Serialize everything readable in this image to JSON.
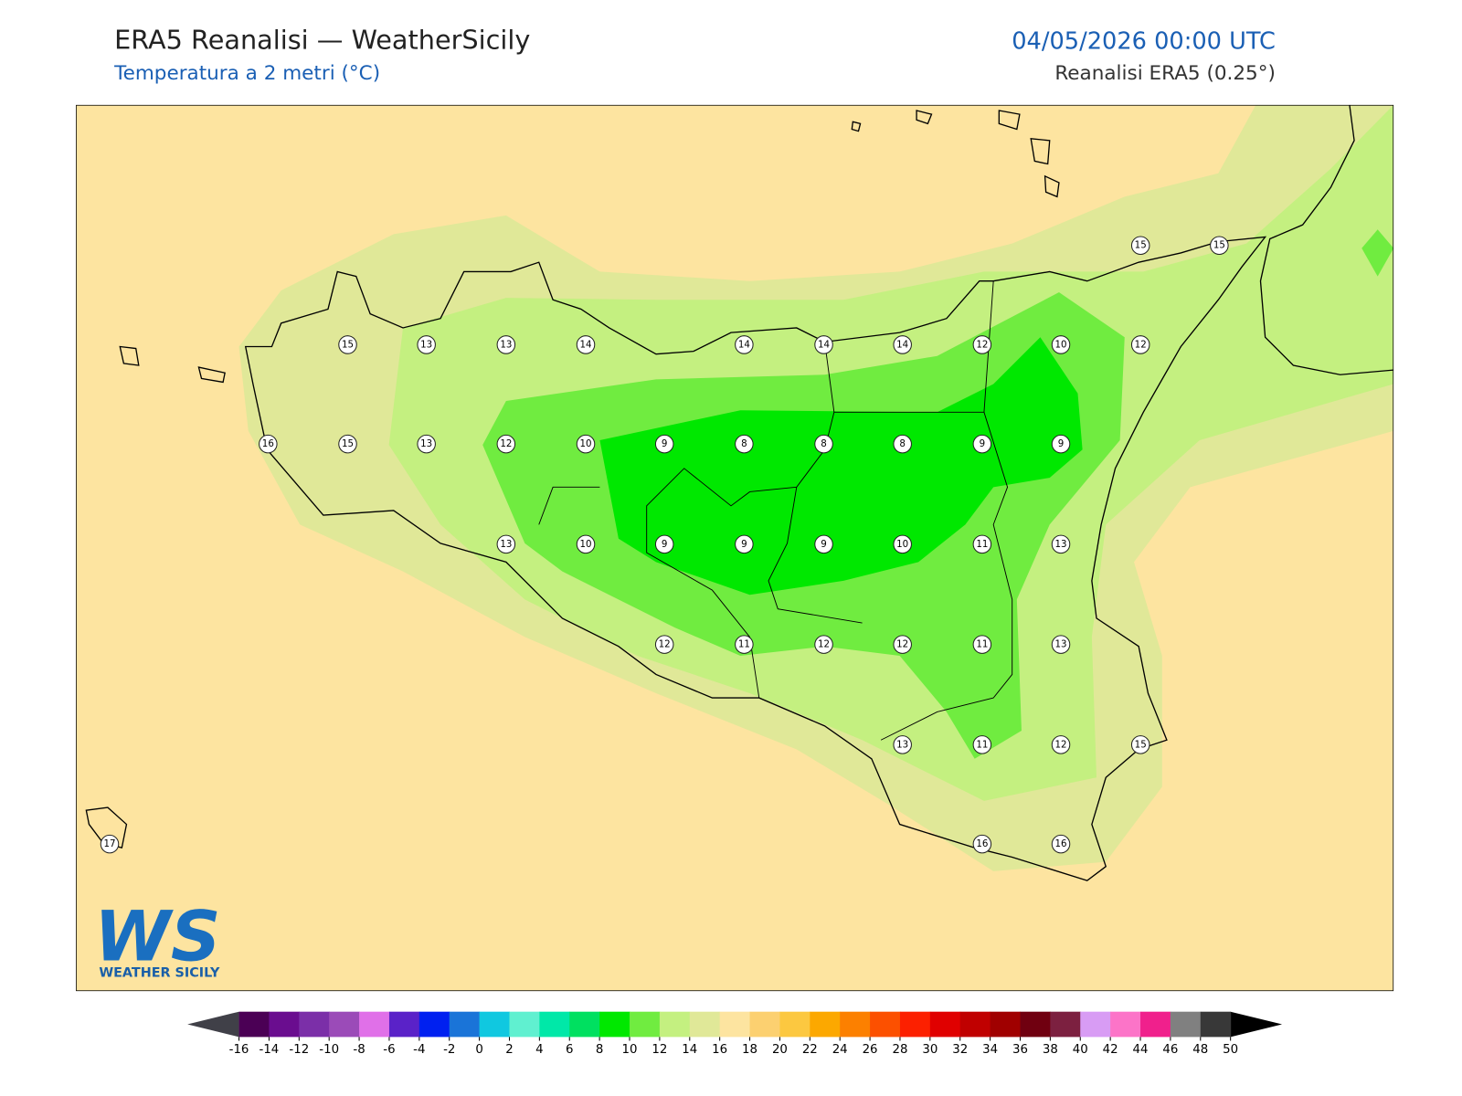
{
  "header": {
    "title": "ERA5 Reanalisi — WeatherSicily",
    "subtitle": "Temperatura a 2 metri (°C)",
    "datetime": "04/05/2026 00:00 UTC",
    "source": "Reanalisi ERA5 (0.25°)"
  },
  "map": {
    "station_values": [
      15,
      15,
      15,
      13,
      13,
      14,
      14,
      14,
      14,
      12,
      10,
      12,
      16,
      15,
      13,
      12,
      10,
      9,
      8,
      8,
      8,
      9,
      9,
      13,
      10,
      9,
      9,
      9,
      10,
      11,
      13,
      12,
      11,
      12,
      12,
      11,
      13,
      13,
      11,
      12,
      15,
      17,
      16,
      16
    ]
  },
  "colorbar": {
    "ticks": [
      -16,
      -14,
      -12,
      -10,
      -8,
      -6,
      -4,
      -2,
      0,
      2,
      4,
      6,
      8,
      10,
      12,
      14,
      16,
      18,
      20,
      22,
      24,
      26,
      28,
      30,
      32,
      34,
      36,
      38,
      40,
      42,
      44,
      46,
      48,
      50
    ],
    "colors": [
      "#4b0055",
      "#6a0d8f",
      "#7b2fa8",
      "#9b4bb8",
      "#e070e8",
      "#5a22c8",
      "#0020f0",
      "#1a74d8",
      "#10c8e0",
      "#60f0d0",
      "#00e8a8",
      "#00e060",
      "#00e800",
      "#70ec40",
      "#c4f080",
      "#e0e898",
      "#fde4a0",
      "#fcd070",
      "#fcc840",
      "#fca800",
      "#fc8000",
      "#fc5000",
      "#fc2000",
      "#e00000",
      "#c00000",
      "#a00000",
      "#700010",
      "#7c2040",
      "#d89cf4",
      "#fc74c8",
      "#f0208c",
      "#808080",
      "#383838"
    ]
  },
  "logo": {
    "mark": "WS",
    "name": "WEATHER SICILY"
  }
}
